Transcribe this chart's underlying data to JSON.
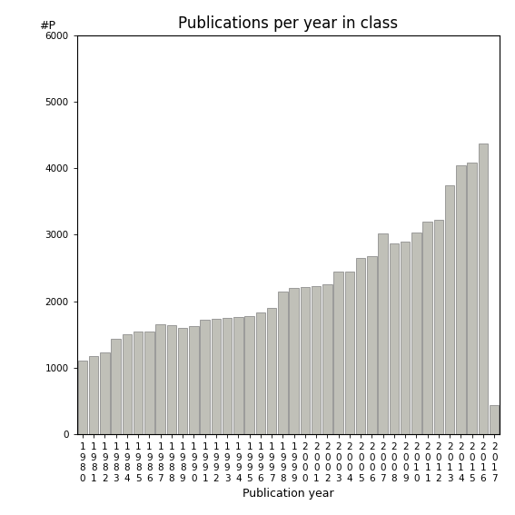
{
  "title": "Publications per year in class",
  "xlabel": "Publication year",
  "ylabel": "#P",
  "years": [
    "1980",
    "1981",
    "1982",
    "1983",
    "1984",
    "1985",
    "1986",
    "1987",
    "1988",
    "1989",
    "1990",
    "1991",
    "1992",
    "1993",
    "1994",
    "1995",
    "1996",
    "1997",
    "1998",
    "1999",
    "2000",
    "2001",
    "2002",
    "2003",
    "2004",
    "2005",
    "2006",
    "2007",
    "2008",
    "2009",
    "2010",
    "2011",
    "2012",
    "2013",
    "2014",
    "2015",
    "2016",
    "2017"
  ],
  "values": [
    1100,
    1180,
    1230,
    1430,
    1500,
    1540,
    1550,
    1650,
    1640,
    1600,
    1620,
    1720,
    1740,
    1750,
    1760,
    1780,
    1830,
    1900,
    2150,
    2200,
    2220,
    2230,
    2250,
    2450,
    2450,
    2650,
    2680,
    3020,
    2870,
    2900,
    3030,
    3200,
    3230,
    3750,
    4050,
    4080,
    4370,
    430
  ],
  "bar_color": "#c0c0b8",
  "bar_edge_color": "#808080",
  "ylim": [
    0,
    6000
  ],
  "yticks": [
    0,
    1000,
    2000,
    3000,
    4000,
    5000,
    6000
  ],
  "bg_color": "#ffffff",
  "title_fontsize": 12,
  "axis_label_fontsize": 9,
  "tick_fontsize": 7.5
}
